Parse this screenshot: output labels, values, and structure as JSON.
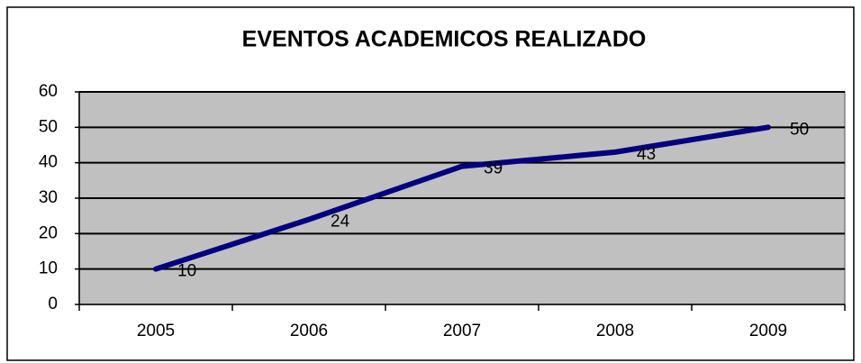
{
  "chart_data": {
    "type": "line",
    "title": "EVENTOS ACADEMICOS REALIZADO",
    "categories": [
      "2005",
      "2006",
      "2007",
      "2008",
      "2009"
    ],
    "values": [
      10,
      24,
      39,
      43,
      50
    ],
    "color": "#000080",
    "ylim": [
      0,
      60
    ],
    "yticks": [
      0,
      10,
      20,
      30,
      40,
      50,
      60
    ],
    "grid": true,
    "plot_background": "#c0c0c0"
  }
}
